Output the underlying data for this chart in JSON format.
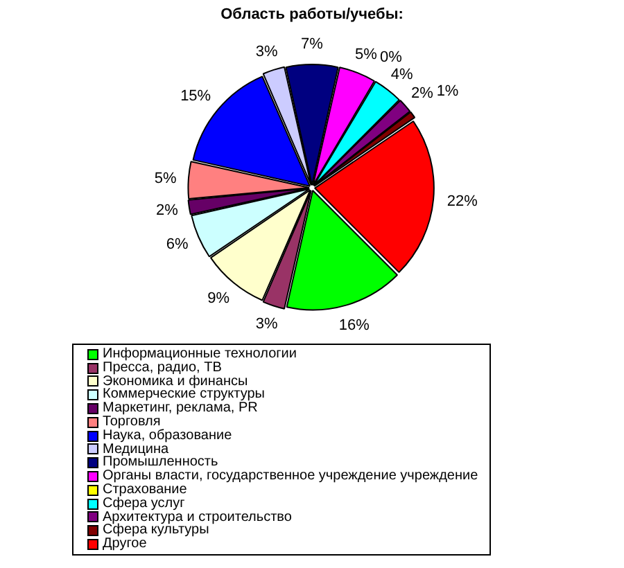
{
  "chart_data": {
    "type": "pie",
    "title": "Область работы/учебы:",
    "categories": [
      "Информационные технологии",
      "Пресса, радио, ТВ",
      "Экономика и финансы",
      "Коммерческие структуры",
      "Маркетинг, реклама, PR",
      "Торговля",
      "Наука, образование",
      "Медицина",
      "Промышленность",
      "Органы власти, государственное учреждение учреждение",
      "Страхование",
      "Сфера услуг",
      "Архитектура и строительство",
      "Сфера культуры",
      "Другое"
    ],
    "values": [
      16,
      3,
      9,
      6,
      2,
      5,
      15,
      3,
      7,
      5,
      0,
      4,
      2,
      1,
      22
    ],
    "colors": [
      "#00ff00",
      "#993366",
      "#ffffcc",
      "#ccffff",
      "#660066",
      "#ff8080",
      "#0000ff",
      "#ccccff",
      "#000080",
      "#ff00ff",
      "#ffff00",
      "#00ffff",
      "#800080",
      "#800000",
      "#ff0000"
    ],
    "value_labels": [
      "16%",
      "3%",
      "9%",
      "6%",
      "2%",
      "5%",
      "15%",
      "3%",
      "7%",
      "5%",
      "0%",
      "4%",
      "2%",
      "1%",
      "22%"
    ],
    "legend": "bottom"
  }
}
